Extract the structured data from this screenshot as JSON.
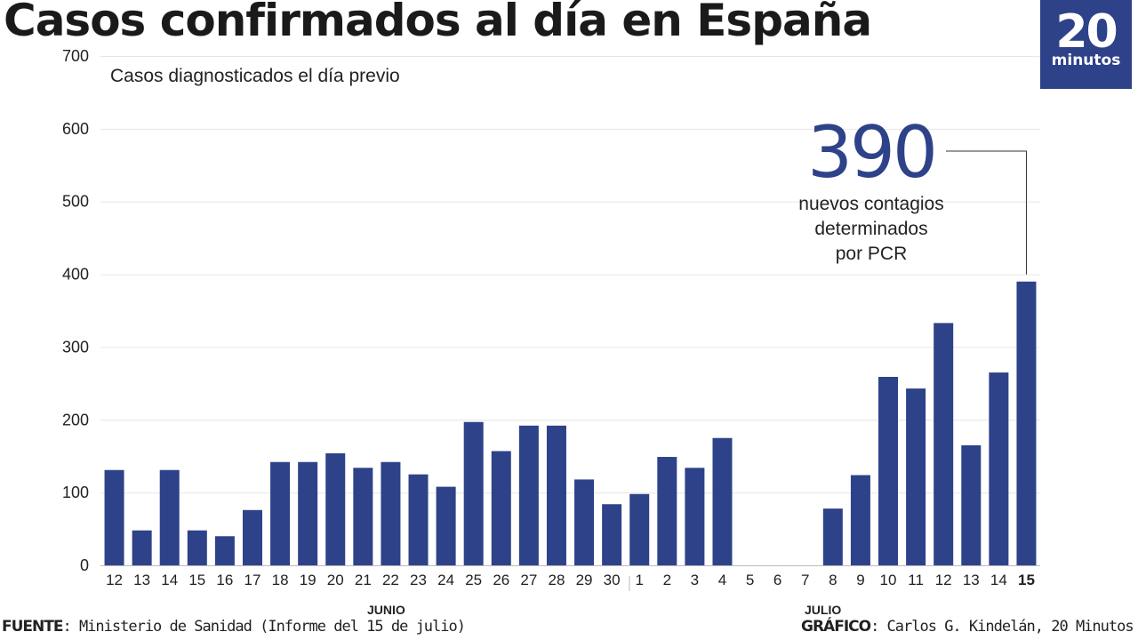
{
  "title": "Casos confirmados al día en España",
  "logo": {
    "number": "20",
    "word": "minutos"
  },
  "annotation": {
    "value": "390",
    "text": [
      "nuevos contagios",
      "determinados",
      "por PCR"
    ]
  },
  "months": {
    "june": "JUNIO",
    "july": "JULIO"
  },
  "footer": {
    "source_label": "FUENTE",
    "source_text": ": Ministerio de Sanidad (Informe del 15 de julio)",
    "credit_label": "GRÁFICO",
    "credit_text": ": Carlos G. Kindelán, 20 Minutos"
  },
  "colors": {
    "bar": "#2e4289",
    "accent": "#2e4289",
    "grid": "#e6e6e6"
  },
  "chart_data": {
    "type": "bar",
    "title": "Casos confirmados al día en España",
    "subtitle": "Casos diagnosticados el día previo",
    "categories": [
      "12",
      "13",
      "14",
      "15",
      "16",
      "17",
      "18",
      "19",
      "20",
      "21",
      "22",
      "23",
      "24",
      "25",
      "26",
      "27",
      "28",
      "29",
      "30",
      "1",
      "2",
      "3",
      "4",
      "5",
      "6",
      "7",
      "8",
      "9",
      "10",
      "11",
      "12",
      "13",
      "14",
      "15"
    ],
    "values": [
      131,
      48,
      131,
      48,
      40,
      76,
      142,
      142,
      154,
      134,
      142,
      125,
      108,
      197,
      157,
      192,
      192,
      118,
      84,
      98,
      149,
      134,
      175,
      0,
      0,
      0,
      78,
      124,
      259,
      243,
      333,
      165,
      265,
      390
    ],
    "ylim": [
      0,
      700
    ],
    "yticks": [
      0,
      100,
      200,
      300,
      400,
      500,
      600,
      700
    ],
    "grid": true,
    "highlight_last": true
  }
}
